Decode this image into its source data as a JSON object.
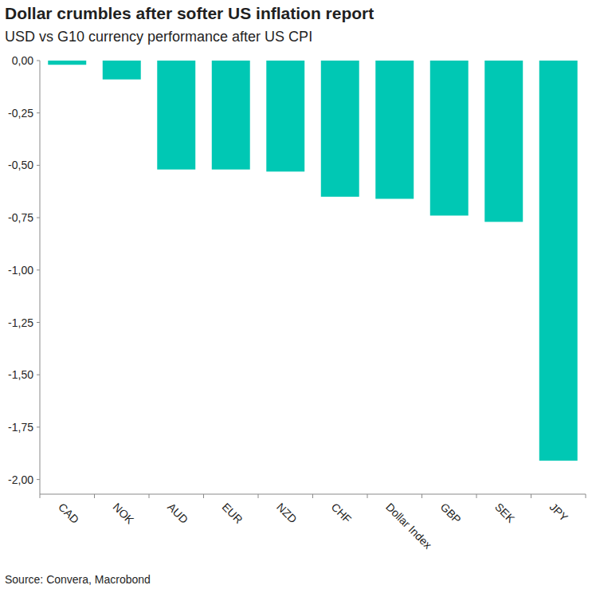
{
  "chart_data": {
    "type": "bar",
    "title": "Dollar crumbles after softer US inflation report",
    "subtitle": "USD vs G10 currency performance after US CPI",
    "source": "Source: Convera, Macrobond",
    "categories": [
      "CAD",
      "NOK",
      "AUD",
      "EUR",
      "NZD",
      "CHF",
      "Dollar Index",
      "GBP",
      "SEK",
      "JPY"
    ],
    "values": [
      -0.02,
      -0.09,
      -0.52,
      -0.52,
      -0.53,
      -0.65,
      -0.66,
      -0.74,
      -0.77,
      -1.91
    ],
    "color": "#00c8b4",
    "ylim": [
      -2.07,
      0
    ],
    "yticks": [
      {
        "value": 0,
        "label": "0,00"
      },
      {
        "value": -0.25,
        "label": "-0,25"
      },
      {
        "value": -0.5,
        "label": "-0,50"
      },
      {
        "value": -0.75,
        "label": "-0,75"
      },
      {
        "value": -1,
        "label": "-1,00"
      },
      {
        "value": -1.25,
        "label": "-1,25"
      },
      {
        "value": -1.5,
        "label": "-1,50"
      },
      {
        "value": -1.75,
        "label": "-1,75"
      },
      {
        "value": -2,
        "label": "-2,00"
      }
    ],
    "grid": false,
    "data_labels": false
  }
}
